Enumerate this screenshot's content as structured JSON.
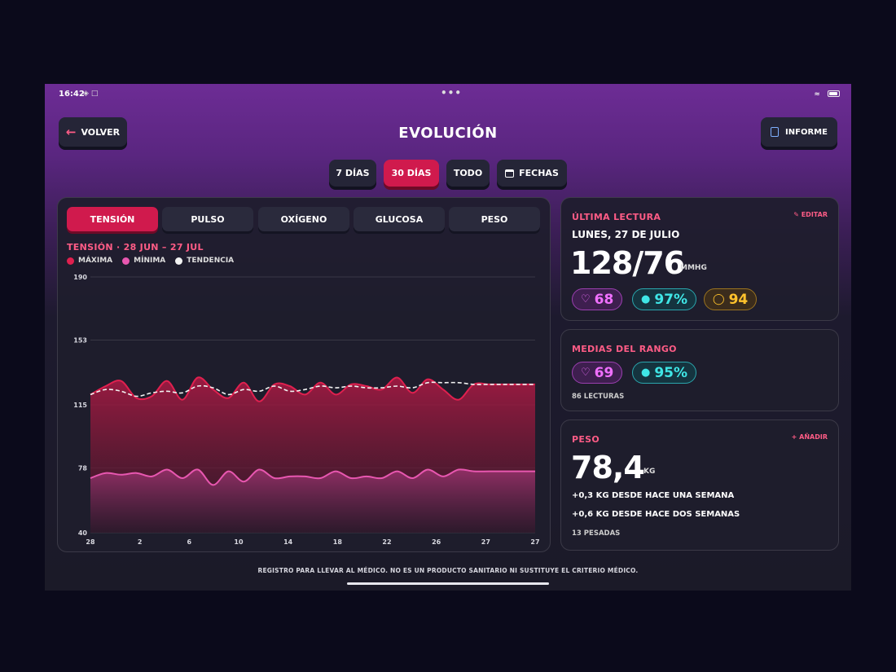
{
  "status": {
    "time": "16:42"
  },
  "header": {
    "back_label": "VOLVER",
    "title": "EVOLUCIÓN",
    "report_label": "INFORME"
  },
  "ranges": [
    {
      "label": "7 DÍAS",
      "active": false
    },
    {
      "label": "30 DÍAS",
      "active": true
    },
    {
      "label": "TODO",
      "active": false
    },
    {
      "label": "FECHAS",
      "active": false
    }
  ],
  "metric_tabs": [
    {
      "label": "TENSIÓN",
      "active": true
    },
    {
      "label": "PULSO",
      "active": false
    },
    {
      "label": "OXÍGENO",
      "active": false
    },
    {
      "label": "GLUCOSA",
      "active": false
    },
    {
      "label": "PESO",
      "active": false
    }
  ],
  "chart_title": "TENSIÓN · 28 JUN – 27 JUL",
  "legend": [
    {
      "label": "MÁXIMA",
      "color": "#e0204f"
    },
    {
      "label": "MÍNIMA",
      "color": "#e857b0"
    },
    {
      "label": "TENDENCIA",
      "color": "#f2f2f2"
    }
  ],
  "chart_data": {
    "type": "area",
    "ylim": [
      40,
      190
    ],
    "y_ticks": [
      "190",
      "153",
      "115",
      "78",
      "40"
    ],
    "x_ticks": [
      "28",
      "2",
      "6",
      "10",
      "14",
      "18",
      "22",
      "26",
      "27",
      "27"
    ],
    "series": [
      {
        "name": "MÁXIMA",
        "color": "#e0204f",
        "values": [
          121,
          126,
          129,
          119,
          120,
          129,
          118,
          131,
          124,
          119,
          128,
          117,
          127,
          126,
          121,
          128,
          121,
          127,
          126,
          124,
          131,
          122,
          130,
          124,
          118,
          127,
          127,
          127,
          127,
          127
        ]
      },
      {
        "name": "MÍNIMA",
        "color": "#e857b0",
        "values": [
          72,
          75,
          74,
          75,
          73,
          77,
          72,
          77,
          68,
          76,
          70,
          77,
          72,
          73,
          73,
          72,
          76,
          72,
          73,
          72,
          76,
          72,
          77,
          73,
          77,
          76,
          76,
          76,
          76,
          76
        ]
      },
      {
        "name": "TENDENCIA",
        "color": "#f2f2f2",
        "values": [
          121,
          124,
          123,
          120,
          122,
          123,
          122,
          126,
          125,
          121,
          124,
          123,
          126,
          123,
          124,
          126,
          125,
          126,
          125,
          125,
          126,
          125,
          128,
          128,
          128,
          127,
          127,
          127,
          127,
          127
        ]
      }
    ]
  },
  "last_reading": {
    "label": "ÚLTIMA LECTURA",
    "edit_label": "EDITAR",
    "date": "LUNES, 27 DE JULIO",
    "value": "128/76",
    "unit": "MMHG",
    "pulse": "68",
    "spo2": "97%",
    "glucose": "94"
  },
  "range_avg": {
    "label": "MEDIAS DEL RANGO",
    "pulse": "69",
    "spo2": "95%",
    "count": "86 LECTURAS"
  },
  "weight": {
    "label": "PESO",
    "add_label": "AÑADIR",
    "value": "78,4",
    "unit": "KG",
    "change_week": "+0,3 KG DESDE HACE UNA SEMANA",
    "change_two_weeks": "+0,6 KG DESDE HACE DOS SEMANAS",
    "count": "13 PESADAS"
  },
  "footer": "REGISTRO PARA LLEVAR AL MÉDICO. NO ES UN PRODUCTO SANITARIO NI SUSTITUYE EL CRITERIO MÉDICO."
}
